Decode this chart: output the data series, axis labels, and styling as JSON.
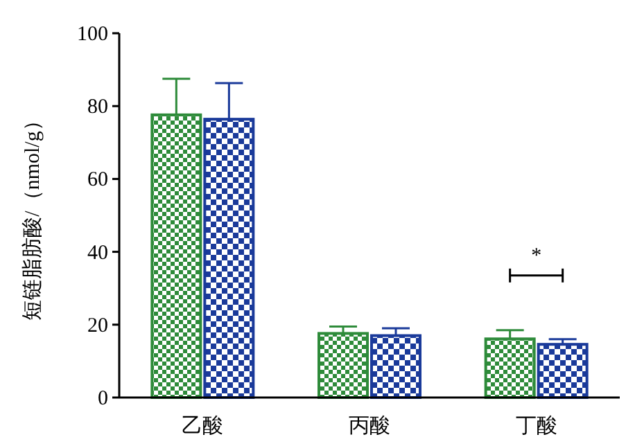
{
  "chart_data": {
    "type": "bar",
    "categories": [
      "乙酸",
      "丙酸",
      "丁酸"
    ],
    "ylabel": "短链脂肪酸/（nmol/g）",
    "ylim": [
      0,
      100
    ],
    "yticks": [
      0,
      20,
      40,
      60,
      80,
      100
    ],
    "series": [
      {
        "color": "#2e8b3a",
        "values": [
          77.6,
          17.6,
          16.1
        ],
        "errors": [
          9.9,
          1.9,
          2.4
        ]
      },
      {
        "color": "#1a3a9a",
        "values": [
          76.4,
          17.0,
          14.6
        ],
        "errors": [
          9.9,
          2.0,
          1.4
        ]
      }
    ],
    "annotations": [
      "*"
    ]
  }
}
